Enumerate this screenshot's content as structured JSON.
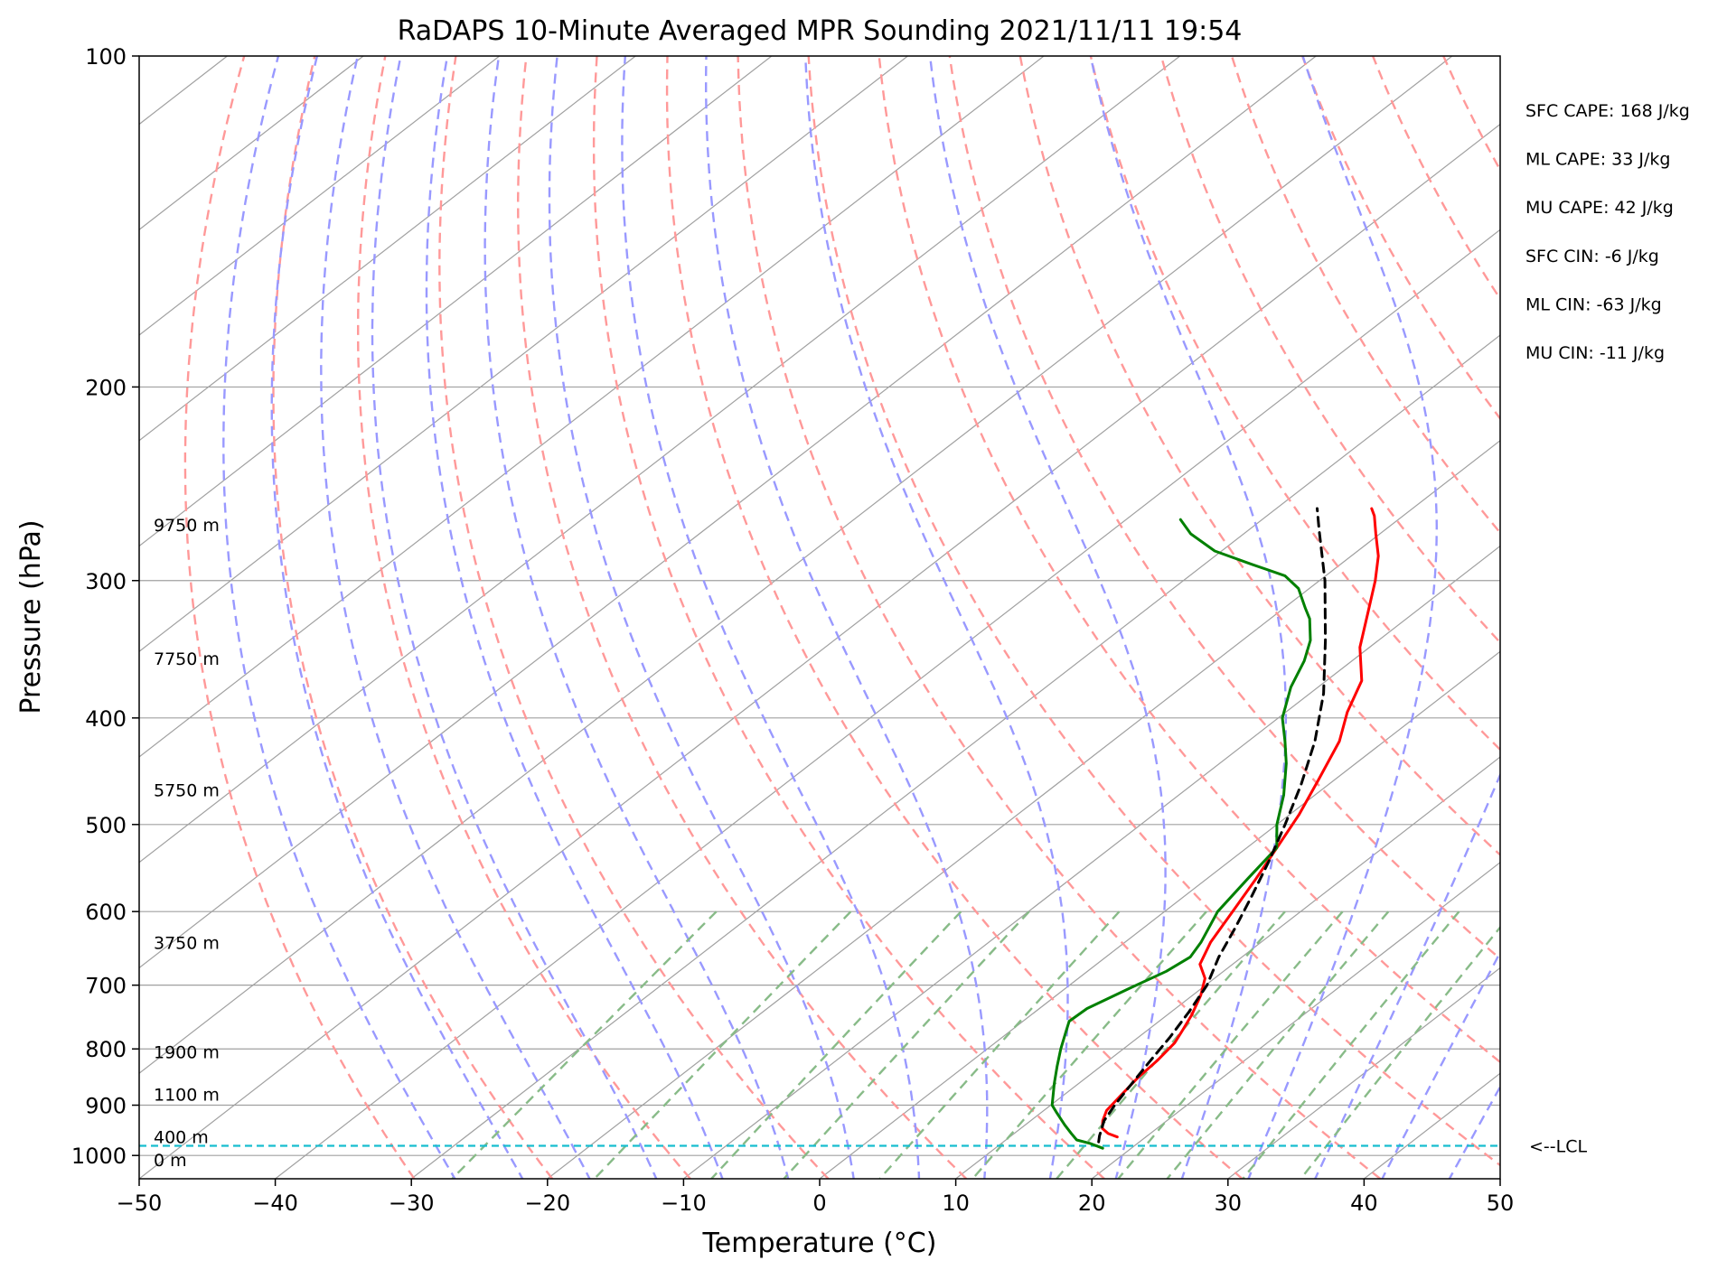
{
  "chart_data": {
    "type": "skew-t",
    "title": "RaDAPS 10-Minute Averaged MPR Sounding 2021/11/11 19:54",
    "xlabel": "Temperature (°C)",
    "ylabel": "Pressure (hPa)",
    "xlim": [
      -50,
      50
    ],
    "ylim": [
      1050,
      100
    ],
    "y_scale": "log",
    "grid": true,
    "x_ticks": [
      -50,
      -40,
      -30,
      -20,
      -10,
      0,
      10,
      20,
      30,
      40,
      50
    ],
    "x_tick_labels": [
      "−50",
      "−40",
      "−30",
      "−20",
      "−10",
      "0",
      "10",
      "20",
      "30",
      "40",
      "50"
    ],
    "y_ticks": [
      100,
      200,
      300,
      400,
      500,
      600,
      700,
      800,
      900,
      1000
    ],
    "y_tick_labels": [
      "100",
      "200",
      "300",
      "400",
      "500",
      "600",
      "700",
      "800",
      "900",
      "1000"
    ],
    "colors": {
      "temperature": "#ff0000",
      "dewpoint": "#008000",
      "parcel": "#000000",
      "lcl": "#17becf",
      "dry_adiabat": "#ff9999",
      "moist_adiabat": "#9999ff",
      "mixing_ratio": "#88bb88",
      "isotherm": "#a0a0a0"
    },
    "series": [
      {
        "key": "temperature",
        "points": [
          [
            962,
            17.9
          ],
          [
            955,
            16.9
          ],
          [
            945,
            16.0
          ],
          [
            930,
            15.3
          ],
          [
            910,
            14.6
          ],
          [
            880,
            14.2
          ],
          [
            850,
            13.8
          ],
          [
            820,
            13.6
          ],
          [
            790,
            13.2
          ],
          [
            770,
            12.6
          ],
          [
            745,
            11.8
          ],
          [
            715,
            10.6
          ],
          [
            690,
            9.3
          ],
          [
            670,
            7.6
          ],
          [
            640,
            6.3
          ],
          [
            600,
            5.0
          ],
          [
            560,
            3.6
          ],
          [
            520,
            2.0
          ],
          [
            490,
            0.7
          ],
          [
            455,
            -1.2
          ],
          [
            420,
            -3.3
          ],
          [
            395,
            -5.5
          ],
          [
            370,
            -7.4
          ],
          [
            345,
            -10.7
          ],
          [
            320,
            -13.5
          ],
          [
            300,
            -15.9
          ],
          [
            285,
            -18.0
          ],
          [
            272,
            -20.3
          ],
          [
            262,
            -22.1
          ],
          [
            258,
            -23.0
          ]
        ]
      },
      {
        "key": "dewpoint",
        "points": [
          [
            985,
            17.9
          ],
          [
            975,
            16.5
          ],
          [
            968,
            15.2
          ],
          [
            955,
            14.2
          ],
          [
            938,
            12.9
          ],
          [
            915,
            11.2
          ],
          [
            900,
            10.1
          ],
          [
            885,
            9.4
          ],
          [
            860,
            8.2
          ],
          [
            830,
            6.8
          ],
          [
            800,
            5.4
          ],
          [
            775,
            4.3
          ],
          [
            755,
            3.4
          ],
          [
            735,
            3.5
          ],
          [
            705,
            4.7
          ],
          [
            680,
            5.8
          ],
          [
            660,
            6.2
          ],
          [
            640,
            5.6
          ],
          [
            600,
            3.9
          ],
          [
            560,
            3.0
          ],
          [
            525,
            2.2
          ],
          [
            500,
            0.0
          ],
          [
            470,
            -2.3
          ],
          [
            440,
            -5.1
          ],
          [
            420,
            -7.3
          ],
          [
            400,
            -9.7
          ],
          [
            375,
            -12.0
          ],
          [
            355,
            -13.5
          ],
          [
            340,
            -15.0
          ],
          [
            325,
            -17.1
          ],
          [
            318,
            -18.4
          ],
          [
            305,
            -20.8
          ],
          [
            297,
            -23.0
          ],
          [
            290,
            -26.5
          ],
          [
            282,
            -30.5
          ],
          [
            272,
            -33.9
          ],
          [
            264,
            -36.0
          ]
        ]
      },
      {
        "key": "parcel",
        "points": [
          [
            972,
            17.0
          ],
          [
            960,
            16.5
          ],
          [
            930,
            15.4
          ],
          [
            900,
            14.7
          ],
          [
            860,
            13.9
          ],
          [
            820,
            13.1
          ],
          [
            780,
            12.3
          ],
          [
            740,
            11.3
          ],
          [
            700,
            10.1
          ],
          [
            660,
            8.3
          ],
          [
            620,
            6.7
          ],
          [
            580,
            4.9
          ],
          [
            540,
            2.9
          ],
          [
            500,
            0.6
          ],
          [
            460,
            -2.0
          ],
          [
            420,
            -5.1
          ],
          [
            380,
            -9.0
          ],
          [
            340,
            -13.9
          ],
          [
            300,
            -19.6
          ],
          [
            270,
            -24.8
          ],
          [
            258,
            -27.0
          ]
        ]
      }
    ],
    "lcl_pressure": 980,
    "lcl_label": "<--LCL",
    "height_labels": [
      {
        "pressure": 1009,
        "label": "0 m"
      },
      {
        "pressure": 962,
        "label": "400 m"
      },
      {
        "pressure": 880,
        "label": "1100 m"
      },
      {
        "pressure": 805,
        "label": "1900 m"
      },
      {
        "pressure": 640,
        "label": "3750 m"
      },
      {
        "pressure": 465,
        "label": "5750 m"
      },
      {
        "pressure": 353,
        "label": "7750 m"
      },
      {
        "pressure": 267,
        "label": "9750 m"
      }
    ],
    "mixing_ratio_g_per_kg": [
      0.4,
      1,
      2,
      3,
      5,
      8,
      12,
      16,
      20,
      28,
      36
    ],
    "stats": [
      "SFC CAPE: 168 J/kg",
      "ML CAPE: 33 J/kg",
      "MU CAPE: 42 J/kg",
      "SFC CIN: -6 J/kg",
      "ML CIN: -63 J/kg",
      "MU CIN: -11 J/kg"
    ]
  }
}
